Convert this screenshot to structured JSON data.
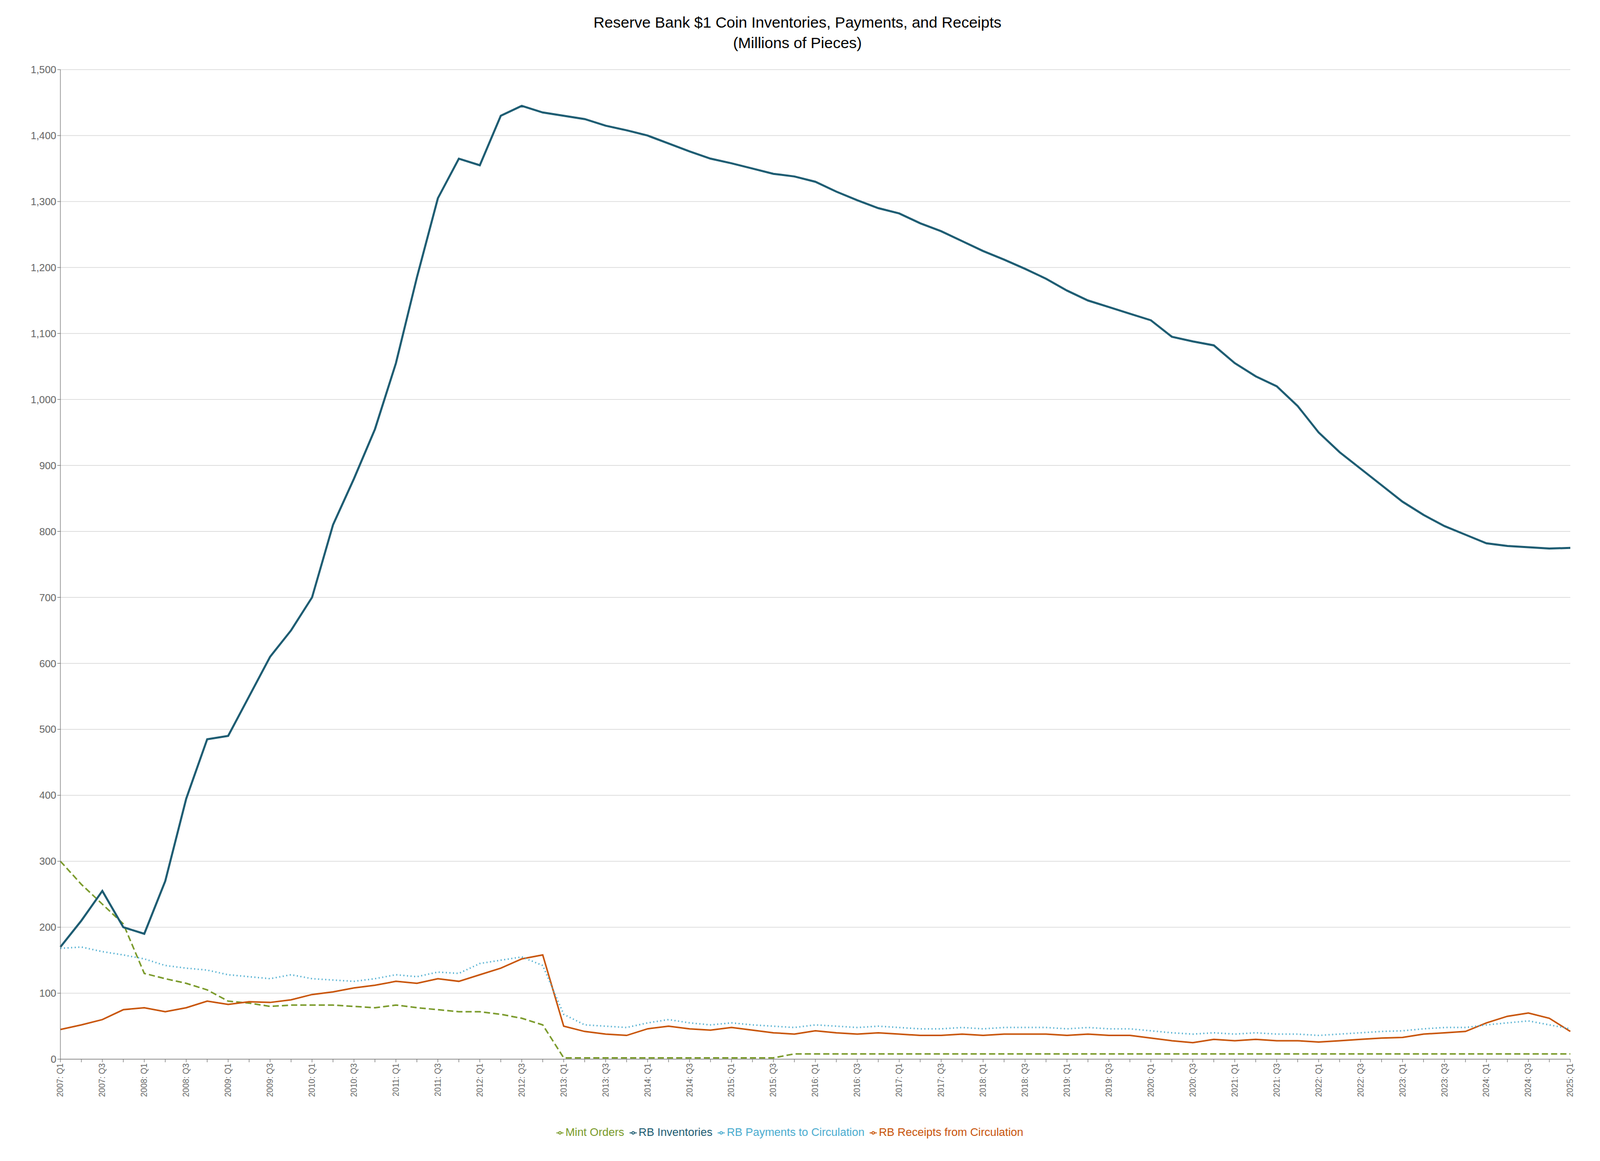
{
  "chart_data": {
    "type": "line",
    "title": "Reserve Bank $1 Coin Inventories, Payments, and Receipts",
    "subtitle": "(Millions of Pieces)",
    "categories": [
      "2007: Q1",
      null,
      "2007: Q3",
      null,
      "2008: Q1",
      null,
      "2008: Q3",
      null,
      "2009: Q1",
      null,
      "2009: Q3",
      null,
      "2010: Q1",
      null,
      "2010: Q3",
      null,
      "2011: Q1",
      null,
      "2011: Q3",
      null,
      "2012: Q1",
      null,
      "2012: Q3",
      null,
      "2013: Q1",
      null,
      "2013: Q3",
      null,
      "2014: Q1",
      null,
      "2014: Q3",
      null,
      "2015: Q1",
      null,
      "2015: Q3",
      null,
      "2016: Q1",
      null,
      "2016: Q3",
      null,
      "2017: Q1",
      null,
      "2017: Q3",
      null,
      "2018: Q1",
      null,
      "2018: Q3",
      null,
      "2019: Q1",
      null,
      "2019: Q3",
      null,
      "2020: Q1",
      null,
      "2020: Q3",
      null,
      "2021: Q1",
      null,
      "2021: Q3",
      null,
      "2022: Q1",
      null,
      "2022: Q3",
      null,
      "2023: Q1",
      null,
      "2023: Q3",
      null,
      "2024: Q1",
      null,
      "2024: Q3",
      null,
      "2025: Q1"
    ],
    "series": [
      {
        "name": "Mint Orders",
        "color": "#7a9a2a",
        "line_style": "dashed",
        "values": [
          300,
          265,
          235,
          205,
          130,
          122,
          115,
          105,
          88,
          85,
          80,
          82,
          82,
          82,
          80,
          78,
          82,
          78,
          75,
          72,
          72,
          68,
          62,
          52,
          2,
          2,
          2,
          2,
          2,
          2,
          2,
          2,
          2,
          2,
          2,
          8,
          8,
          8,
          8,
          8,
          8,
          8,
          8,
          8,
          8,
          8,
          8,
          8,
          8,
          8,
          8,
          8,
          8,
          8,
          8,
          8,
          8,
          8,
          8,
          8,
          8,
          8,
          8,
          8,
          8,
          8,
          8,
          8,
          8,
          8,
          8,
          8,
          8
        ]
      },
      {
        "name": "RB Receipts from Circulation",
        "color": "#c8540a",
        "line_style": "solid",
        "values": [
          45,
          52,
          60,
          75,
          78,
          72,
          78,
          88,
          83,
          87,
          86,
          90,
          98,
          102,
          108,
          112,
          118,
          115,
          122,
          118,
          128,
          138,
          152,
          158,
          50,
          42,
          38,
          36,
          46,
          50,
          46,
          44,
          48,
          44,
          40,
          38,
          43,
          40,
          38,
          40,
          38,
          36,
          36,
          38,
          36,
          38,
          38,
          38,
          36,
          38,
          36,
          36,
          32,
          28,
          25,
          30,
          28,
          30,
          28,
          28,
          26,
          28,
          30,
          32,
          33,
          38,
          40,
          42,
          55,
          65,
          70,
          62,
          42
        ]
      },
      {
        "name": "RB Payments to Circulation",
        "color": "#4aaccf",
        "line_style": "dotted",
        "values": [
          168,
          170,
          163,
          158,
          152,
          142,
          138,
          135,
          128,
          125,
          122,
          128,
          122,
          120,
          118,
          122,
          128,
          125,
          132,
          130,
          145,
          150,
          155,
          142,
          68,
          52,
          50,
          48,
          55,
          60,
          55,
          52,
          55,
          52,
          50,
          48,
          52,
          50,
          48,
          50,
          48,
          46,
          46,
          48,
          46,
          48,
          48,
          48,
          46,
          48,
          46,
          46,
          43,
          40,
          38,
          40,
          38,
          40,
          38,
          38,
          36,
          38,
          40,
          42,
          43,
          46,
          48,
          48,
          52,
          55,
          58,
          52,
          46
        ]
      },
      {
        "name": "RB Inventories",
        "color": "#1d5c72",
        "line_style": "solid",
        "values": [
          170,
          210,
          255,
          200,
          190,
          270,
          395,
          485,
          490,
          550,
          610,
          650,
          700,
          810,
          880,
          955,
          1055,
          1185,
          1305,
          1365,
          1355,
          1430,
          1445,
          1435,
          1430,
          1425,
          1415,
          1408,
          1400,
          1388,
          1376,
          1365,
          1358,
          1350,
          1342,
          1338,
          1330,
          1315,
          1302,
          1290,
          1282,
          1267,
          1255,
          1240,
          1225,
          1212,
          1198,
          1183,
          1165,
          1150,
          1140,
          1130,
          1120,
          1095,
          1088,
          1082,
          1055,
          1035,
          1020,
          990,
          950,
          920,
          895,
          870,
          845,
          825,
          808,
          795,
          782,
          778,
          776,
          774,
          775
        ]
      }
    ],
    "ylim": [
      0,
      1500
    ],
    "yticks": [
      0,
      100,
      200,
      300,
      400,
      500,
      600,
      700,
      800,
      900,
      {
        "value": 1000,
        "label": "1,000"
      },
      {
        "value": 1100,
        "label": "1,100"
      },
      {
        "value": 1200,
        "label": "1,200"
      },
      {
        "value": 1300,
        "label": "1,300"
      },
      {
        "value": 1400,
        "label": "1,400"
      },
      {
        "value": 1500,
        "label": "1,500"
      }
    ],
    "grid": true,
    "legend": "bottom"
  }
}
